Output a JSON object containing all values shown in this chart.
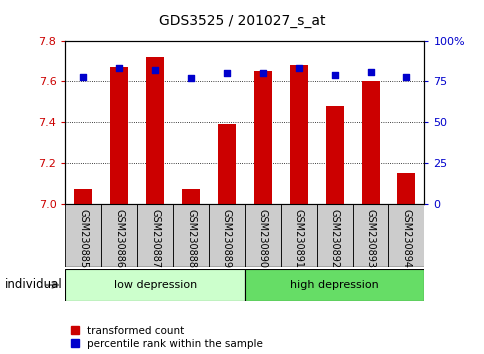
{
  "title": "GDS3525 / 201027_s_at",
  "samples": [
    "GSM230885",
    "GSM230886",
    "GSM230887",
    "GSM230888",
    "GSM230889",
    "GSM230890",
    "GSM230891",
    "GSM230892",
    "GSM230893",
    "GSM230894"
  ],
  "red_values": [
    7.07,
    7.67,
    7.72,
    7.07,
    7.39,
    7.65,
    7.68,
    7.48,
    7.6,
    7.15
  ],
  "blue_values": [
    78,
    83,
    82,
    77,
    80,
    80,
    83,
    79,
    81,
    78
  ],
  "groups": [
    {
      "label": "low depression",
      "start": 0,
      "end": 4,
      "color": "#ccffcc"
    },
    {
      "label": "high depression",
      "start": 5,
      "end": 9,
      "color": "#66dd66"
    }
  ],
  "ylim_left": [
    7.0,
    7.8
  ],
  "ylim_right": [
    0,
    100
  ],
  "yticks_left": [
    7.0,
    7.2,
    7.4,
    7.6,
    7.8
  ],
  "yticks_right": [
    0,
    25,
    50,
    75,
    100
  ],
  "ytick_labels_right": [
    "0",
    "25",
    "50",
    "75",
    "100%"
  ],
  "bar_color": "#cc0000",
  "dot_color": "#0000cc",
  "bar_width": 0.5,
  "left_axis_color": "#cc0000",
  "right_axis_color": "#0000cc",
  "legend_red_label": "transformed count",
  "legend_blue_label": "percentile rank within the sample",
  "baseline": 7.0,
  "box_color": "#cccccc"
}
